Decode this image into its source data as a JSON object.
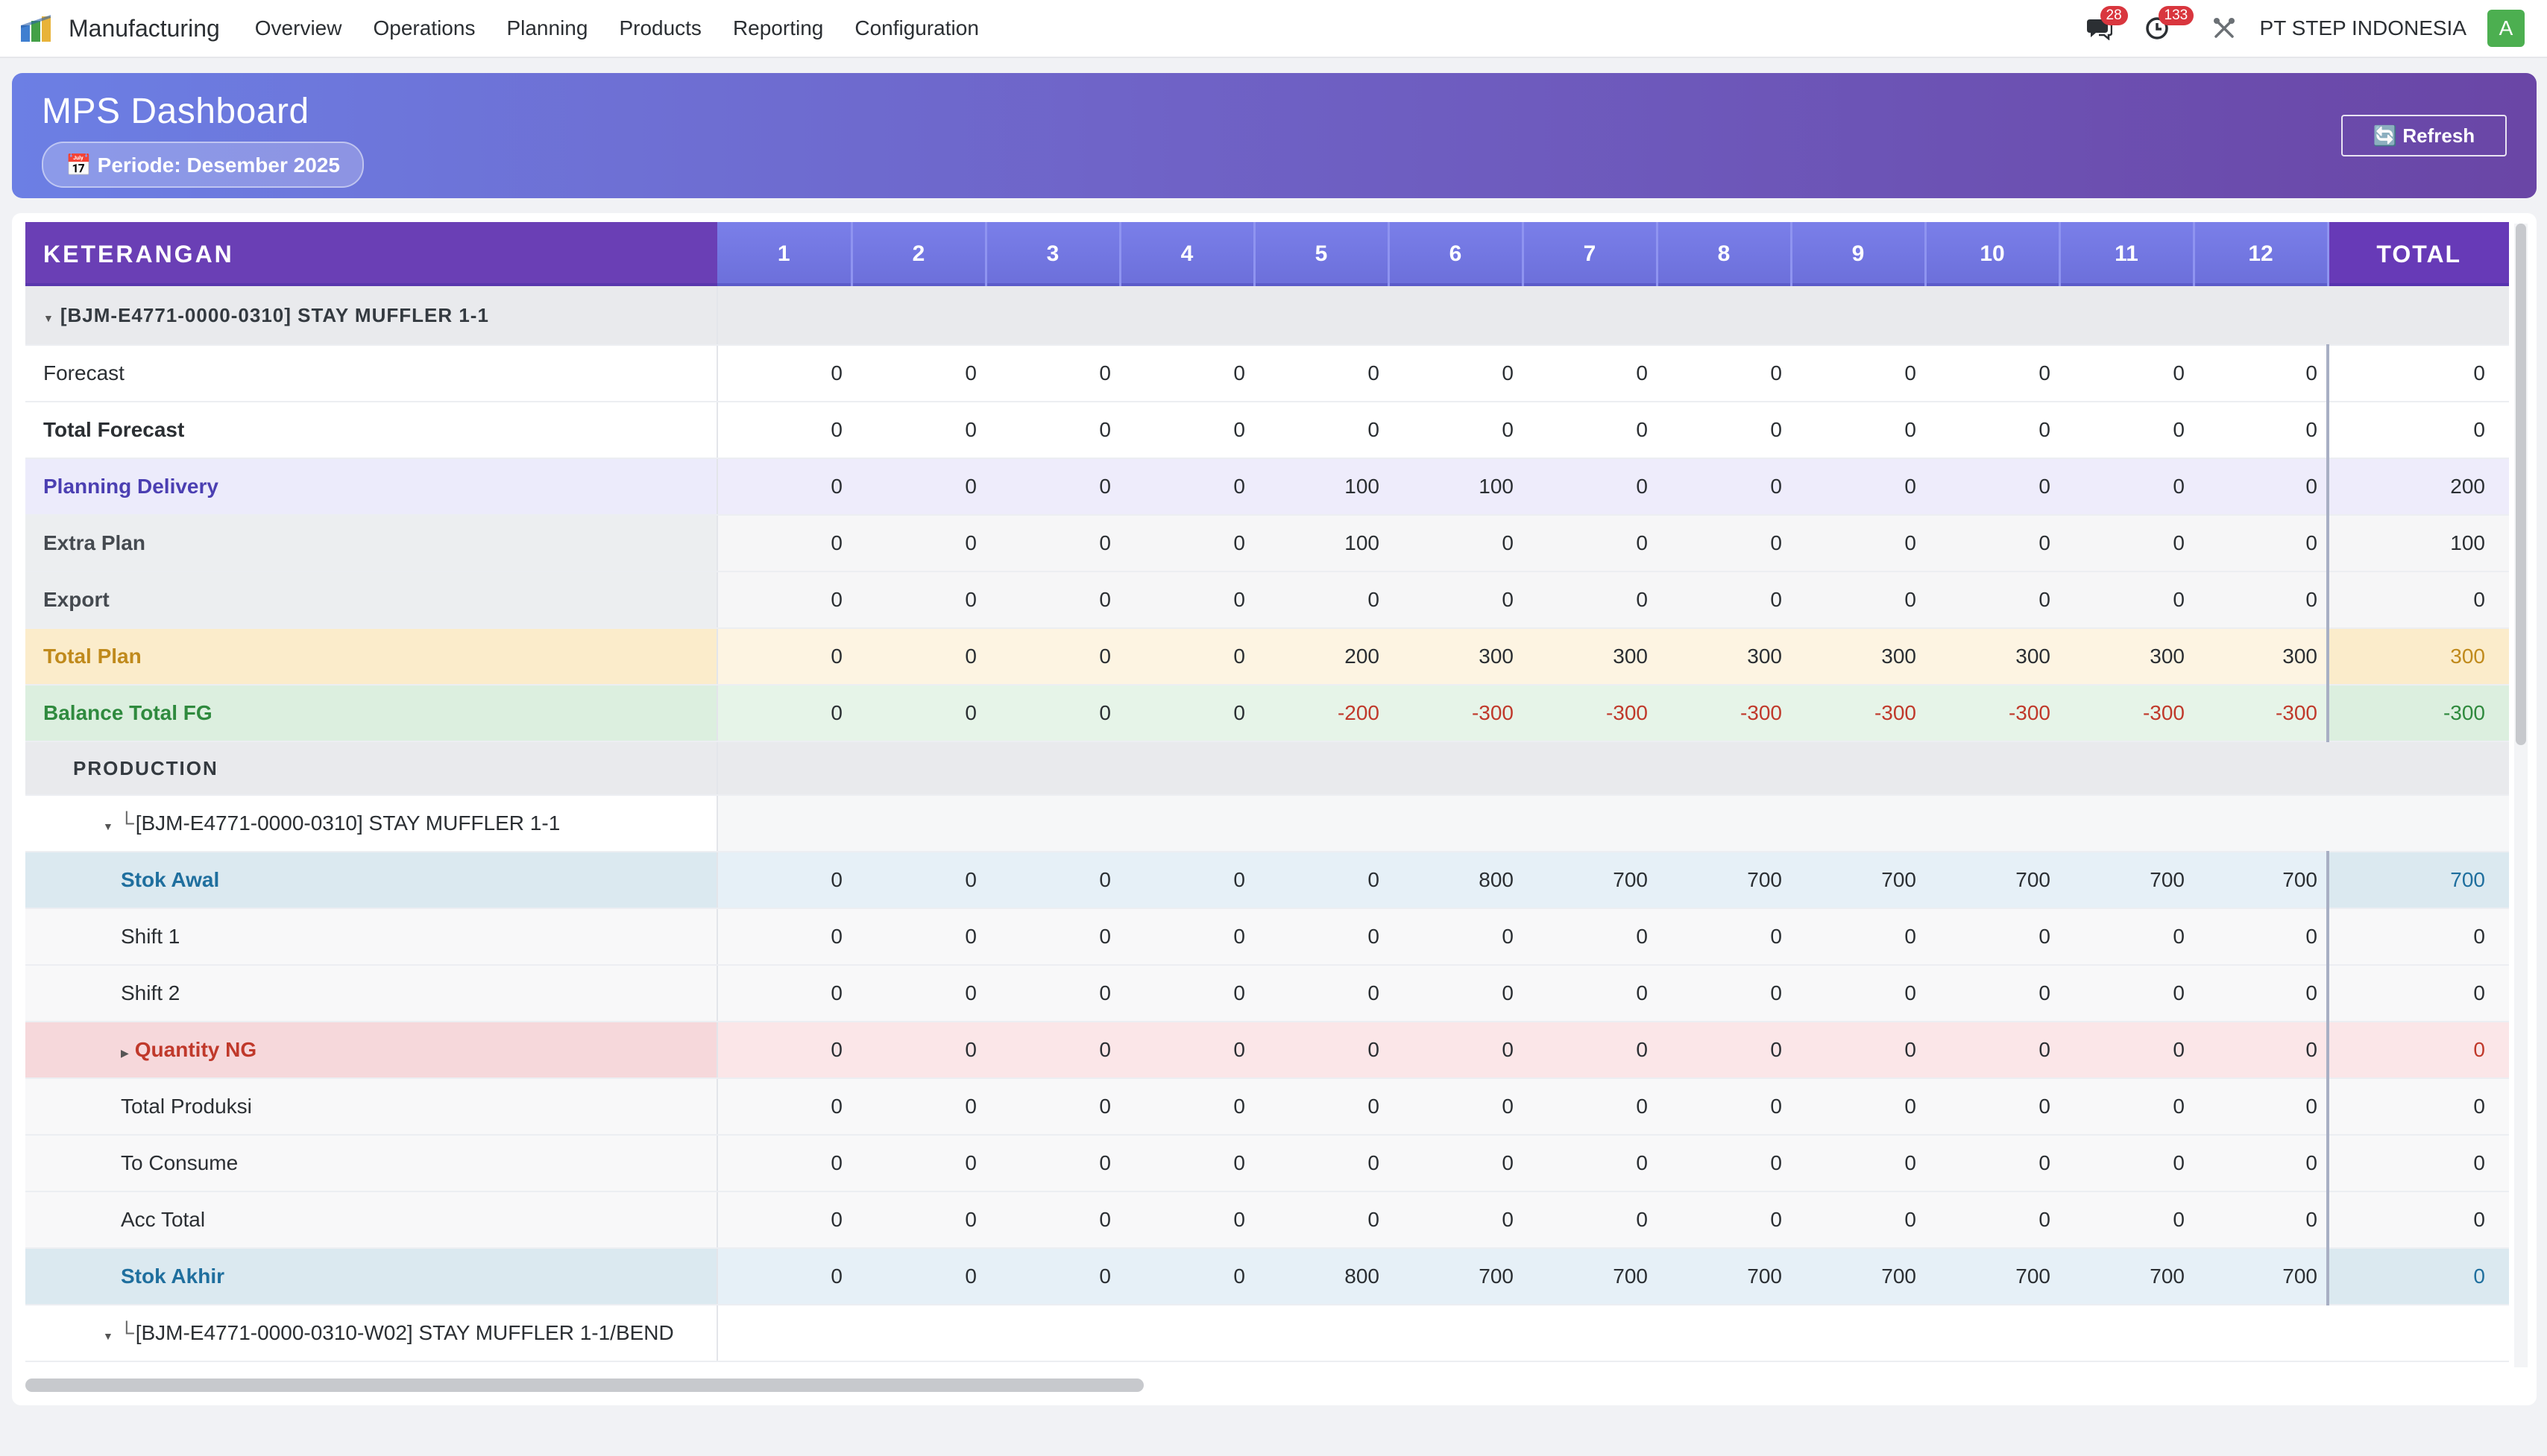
{
  "app": {
    "name": "Manufacturing",
    "menu": [
      "Overview",
      "Operations",
      "Planning",
      "Products",
      "Reporting",
      "Configuration"
    ],
    "messages_badge": "28",
    "activities_badge": "133",
    "company": "PT STEP INDONESIA",
    "avatar_letter": "A",
    "brand_colors": [
      "#3f7fd0",
      "#43a047",
      "#e8b33a"
    ]
  },
  "header": {
    "title": "MPS Dashboard",
    "period": "📅 Periode: Desember 2025",
    "refresh_label": "🔄 Refresh"
  },
  "table": {
    "label_header": "KETERANGAN",
    "month_headers": [
      "1",
      "2",
      "3",
      "4",
      "5",
      "6",
      "7",
      "8",
      "9",
      "10",
      "11",
      "12"
    ],
    "total_header": "TOTAL",
    "group_title": "[BJM-E4771-0000-0310] STAY MUFFLER 1-1",
    "rows": [
      {
        "label": "Forecast",
        "values": [
          "0",
          "0",
          "0",
          "0",
          "0",
          "0",
          "0",
          "0",
          "0",
          "0",
          "0",
          "0"
        ],
        "total": "0"
      },
      {
        "label": "Total Forecast",
        "values": [
          "0",
          "0",
          "0",
          "0",
          "0",
          "0",
          "0",
          "0",
          "0",
          "0",
          "0",
          "0"
        ],
        "total": "0"
      },
      {
        "label": "Planning Delivery",
        "values": [
          "0",
          "0",
          "0",
          "0",
          "100",
          "100",
          "0",
          "0",
          "0",
          "0",
          "0",
          "0"
        ],
        "total": "200"
      },
      {
        "label": "Extra Plan",
        "values": [
          "0",
          "0",
          "0",
          "0",
          "100",
          "0",
          "0",
          "0",
          "0",
          "0",
          "0",
          "0"
        ],
        "total": "100"
      },
      {
        "label": "Export",
        "values": [
          "0",
          "0",
          "0",
          "0",
          "0",
          "0",
          "0",
          "0",
          "0",
          "0",
          "0",
          "0"
        ],
        "total": "0"
      },
      {
        "label": "Total Plan",
        "values": [
          "0",
          "0",
          "0",
          "0",
          "200",
          "300",
          "300",
          "300",
          "300",
          "300",
          "300",
          "300"
        ],
        "total": "300"
      },
      {
        "label": "Balance Total FG",
        "values": [
          "0",
          "0",
          "0",
          "0",
          "-200",
          "-300",
          "-300",
          "-300",
          "-300",
          "-300",
          "-300",
          "-300"
        ],
        "total": "-300"
      }
    ],
    "production_label": "PRODUCTION",
    "production_item": "[BJM-E4771-0000-0310] STAY MUFFLER 1-1",
    "production_rows": [
      {
        "label": "Stok Awal",
        "values": [
          "0",
          "0",
          "0",
          "0",
          "0",
          "800",
          "700",
          "700",
          "700",
          "700",
          "700",
          "700"
        ],
        "total": "700"
      },
      {
        "label": "Shift 1",
        "values": [
          "0",
          "0",
          "0",
          "0",
          "0",
          "0",
          "0",
          "0",
          "0",
          "0",
          "0",
          "0"
        ],
        "total": "0"
      },
      {
        "label": "Shift 2",
        "values": [
          "0",
          "0",
          "0",
          "0",
          "0",
          "0",
          "0",
          "0",
          "0",
          "0",
          "0",
          "0"
        ],
        "total": "0"
      },
      {
        "label": "Quantity NG",
        "values": [
          "0",
          "0",
          "0",
          "0",
          "0",
          "0",
          "0",
          "0",
          "0",
          "0",
          "0",
          "0"
        ],
        "total": "0"
      },
      {
        "label": "Total Produksi",
        "values": [
          "0",
          "0",
          "0",
          "0",
          "0",
          "0",
          "0",
          "0",
          "0",
          "0",
          "0",
          "0"
        ],
        "total": "0"
      },
      {
        "label": "To Consume",
        "values": [
          "0",
          "0",
          "0",
          "0",
          "0",
          "0",
          "0",
          "0",
          "0",
          "0",
          "0",
          "0"
        ],
        "total": "0"
      },
      {
        "label": "Acc Total",
        "values": [
          "0",
          "0",
          "0",
          "0",
          "0",
          "0",
          "0",
          "0",
          "0",
          "0",
          "0",
          "0"
        ],
        "total": "0"
      },
      {
        "label": "Stok Akhir",
        "values": [
          "0",
          "0",
          "0",
          "0",
          "800",
          "700",
          "700",
          "700",
          "700",
          "700",
          "700",
          "700"
        ],
        "total": "0"
      }
    ],
    "production_item_2": "[BJM-E4771-0000-0310-W02] STAY MUFFLER 1-1/BEND"
  }
}
